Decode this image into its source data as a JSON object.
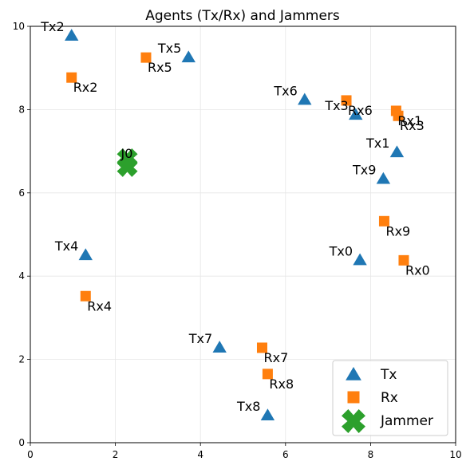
{
  "chart_data": {
    "type": "scatter",
    "title": "Agents (Tx/Rx) and Jammers",
    "xlabel": "",
    "ylabel": "",
    "xlim": [
      0,
      10
    ],
    "ylim": [
      0,
      10
    ],
    "xticks": [
      "0",
      "2",
      "4",
      "6",
      "8",
      "10"
    ],
    "yticks": [
      "0",
      "2",
      "4",
      "6",
      "8",
      "10"
    ],
    "grid": true,
    "legend_position": "lower-right",
    "colors": {
      "tx": "#1f77b4",
      "rx": "#ff7f0e",
      "jammer": "#2ca02c"
    },
    "series": [
      {
        "name": "Tx",
        "marker": "triangle",
        "points": [
          {
            "label": "Tx0",
            "x": 7.75,
            "y": 4.38
          },
          {
            "label": "Tx1",
            "x": 8.62,
            "y": 6.97
          },
          {
            "label": "Tx2",
            "x": 0.97,
            "y": 9.77
          },
          {
            "label": "Tx3",
            "x": 7.65,
            "y": 7.87
          },
          {
            "label": "Tx4",
            "x": 1.3,
            "y": 4.5
          },
          {
            "label": "Tx5",
            "x": 3.72,
            "y": 9.25
          },
          {
            "label": "Tx6",
            "x": 6.45,
            "y": 8.23
          },
          {
            "label": "Tx7",
            "x": 4.45,
            "y": 2.28
          },
          {
            "label": "Tx8",
            "x": 5.58,
            "y": 0.65
          },
          {
            "label": "Tx9",
            "x": 8.3,
            "y": 6.33
          }
        ]
      },
      {
        "name": "Rx",
        "marker": "square",
        "points": [
          {
            "label": "Rx0",
            "x": 8.78,
            "y": 4.38
          },
          {
            "label": "Rx1",
            "x": 8.6,
            "y": 7.97
          },
          {
            "label": "Rx2",
            "x": 0.97,
            "y": 8.77
          },
          {
            "label": "Rx3",
            "x": 8.65,
            "y": 7.85
          },
          {
            "label": "Rx4",
            "x": 1.3,
            "y": 3.52
          },
          {
            "label": "Rx5",
            "x": 2.72,
            "y": 9.25
          },
          {
            "label": "Rx6",
            "x": 7.43,
            "y": 8.22
          },
          {
            "label": "Rx7",
            "x": 5.45,
            "y": 2.28
          },
          {
            "label": "Rx8",
            "x": 5.58,
            "y": 1.65
          },
          {
            "label": "Rx9",
            "x": 8.32,
            "y": 5.32
          }
        ]
      },
      {
        "name": "Jammer",
        "marker": "x",
        "points": [
          {
            "label": "J0",
            "x": 2.28,
            "y": 6.82
          },
          {
            "label": "",
            "x": 2.28,
            "y": 6.63
          }
        ]
      }
    ]
  }
}
